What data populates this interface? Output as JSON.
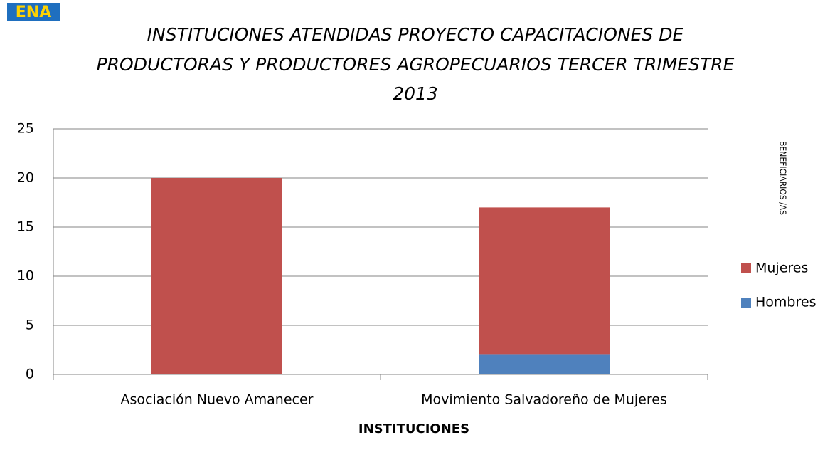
{
  "logo": "ENA",
  "chart_data": {
    "type": "stacked_bar",
    "title": [
      "INSTITUCIONES ATENDIDAS PROYECTO  CAPACITACIONES DE",
      "PRODUCTORAS Y PRODUCTORES AGROPECUARIOS TERCER TRIMESTRE",
      "2013"
    ],
    "x_label": "INSTITUCIONES",
    "y_label": "BENEFICIARIOS /AS",
    "categories": [
      "Asociación Nuevo Amanecer",
      "Movimiento Salvadoreño de Mujeres"
    ],
    "series": [
      {
        "name": "Hombres",
        "color": "#4f81bd",
        "values": [
          0,
          2
        ]
      },
      {
        "name": "Mujeres",
        "color": "#c0504d",
        "values": [
          20,
          15
        ]
      }
    ],
    "ylim": [
      0,
      25
    ],
    "yticks": [
      0,
      5,
      10,
      15,
      20,
      25
    ],
    "grid": true,
    "legend": "right"
  }
}
